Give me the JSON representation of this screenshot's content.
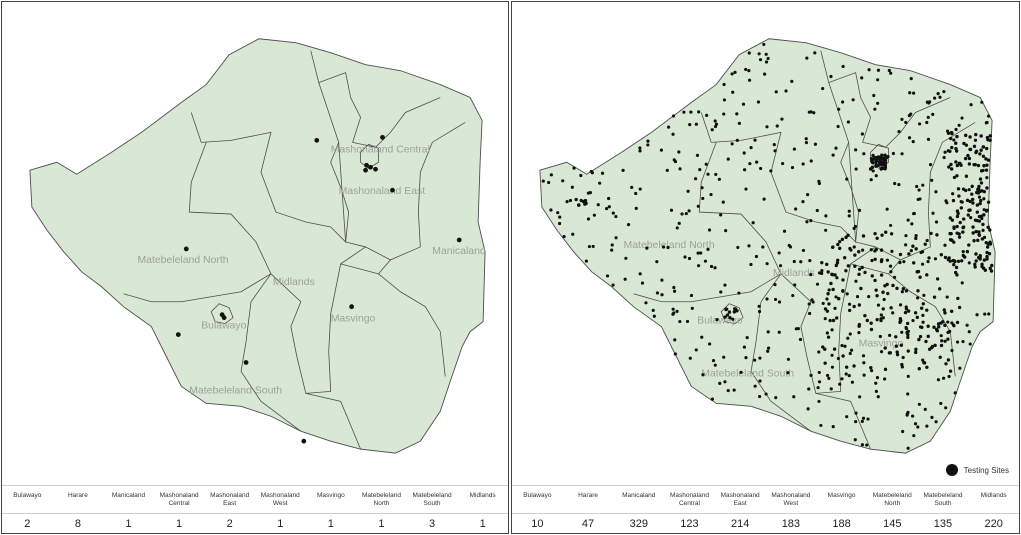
{
  "panels": [
    {
      "id": "left",
      "province_labels": [
        "Mashonaland Central",
        "Mashonaland East",
        "Manicaland",
        "Matebeleland North",
        "Midlands",
        "Masvingo",
        "Bulawayo",
        "Matebeleland South"
      ],
      "table": {
        "headers": [
          "Bulawayo",
          "Harare",
          "Manicaland",
          "Mashonaland Central",
          "Mashonaland East",
          "Mashonaland West",
          "Masvingo",
          "Matebeleland North",
          "Matebeleland South",
          "Midlands"
        ],
        "values": [
          "2",
          "8",
          "1",
          "1",
          "2",
          "1",
          "1",
          "1",
          "3",
          "1"
        ]
      }
    },
    {
      "id": "right",
      "province_labels": [
        "Matebeleland North",
        "Midlands",
        "Bulawayo",
        "Masvingo",
        "Matebeleland South"
      ],
      "legend": {
        "label": "Testing Sites"
      },
      "table": {
        "headers": [
          "Bulawayo",
          "Harare",
          "Manicaland",
          "Mashonaland Central",
          "Mashonaland East",
          "Mashonaland West",
          "Masvingo",
          "Matebeleland North",
          "Matebeleland South",
          "Midlands"
        ],
        "values": [
          "10",
          "47",
          "329",
          "123",
          "214",
          "183",
          "188",
          "145",
          "135",
          "220"
        ]
      }
    }
  ],
  "colors": {
    "land": "#d9e8d4",
    "border": "#4d4d4d",
    "dot": "#111111",
    "label": "#9aa29a"
  }
}
